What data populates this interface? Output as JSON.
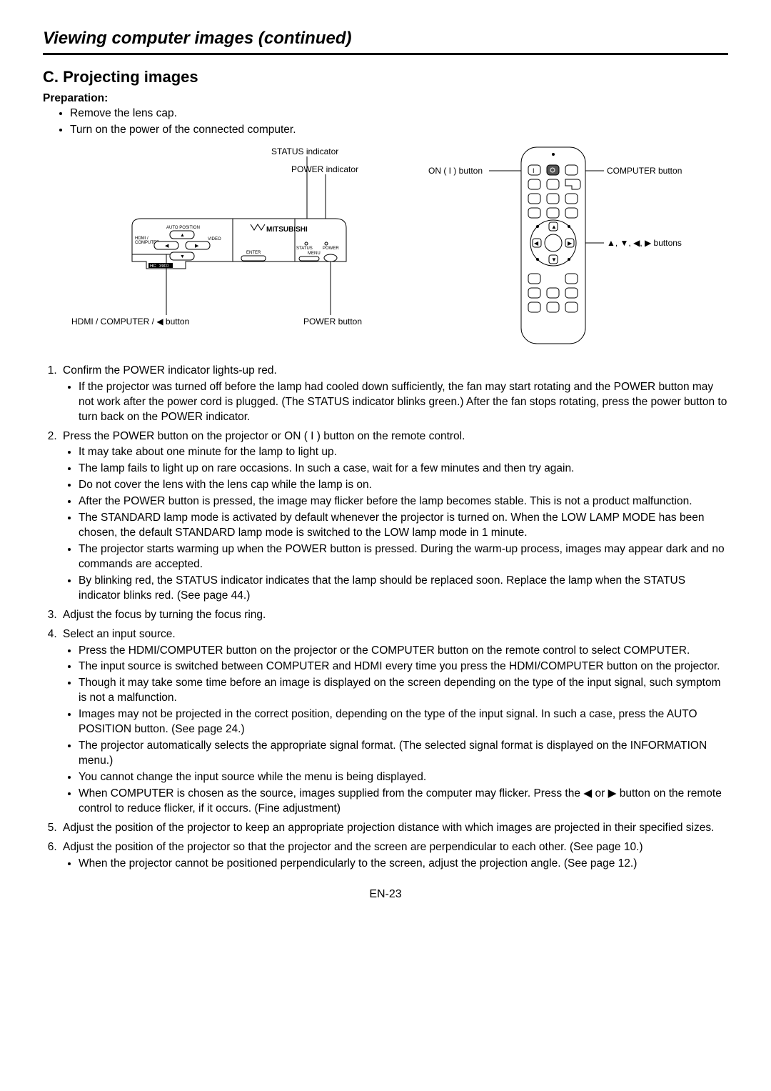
{
  "breadcrumb": "Viewing computer images (continued)",
  "section": "C. Projecting images",
  "preparation_label": "Preparation:",
  "preparation": [
    "Remove the lens cap.",
    "Turn on the power of the connected computer."
  ],
  "labels": {
    "status_indicator": "STATUS indicator",
    "power_indicator": "POWER indicator",
    "hdmi_computer_button": "HDMI / COMPUTER / ◀ button",
    "power_button": "POWER button",
    "on_button": "ON ( I ) button",
    "computer_button": "COMPUTER button",
    "arrow_buttons": "▲, ▼, ◀, ▶ buttons",
    "auto_position": "AUTO POSITION",
    "hdmi_computer": "HDMI /\nCOMPUTER",
    "video": "VIDEO",
    "enter": "ENTER",
    "menu": "MENU",
    "status": "STATUS",
    "power": "POWER",
    "model": "HC3900",
    "brand": "MITSUBISHI"
  },
  "steps": [
    {
      "text": "Confirm the POWER indicator lights-up red.",
      "sub": [
        "If the projector was turned off before the lamp had cooled down sufficiently, the fan may start rotating and the POWER button may not work after the power cord is plugged. (The STATUS indicator blinks green.) After the fan stops rotating, press the power button to turn back on the POWER indicator."
      ]
    },
    {
      "text": "Press the POWER button on the projector or ON ( I ) button on the remote control.",
      "sub": [
        "It may take about one minute for the lamp to light up.",
        "The lamp fails to light up on rare occasions. In such a case, wait for a few minutes and then try again.",
        "Do not cover the lens with the lens cap while the lamp is on.",
        "After the POWER button is pressed, the image may flicker before the lamp becomes stable. This is not a product malfunction.",
        "The STANDARD lamp mode is activated by default whenever the projector is turned on. When the LOW LAMP MODE has been chosen, the default STANDARD lamp mode is switched to the LOW lamp mode in 1 minute.",
        "The projector starts warming up when the POWER button is pressed. During the warm-up process, images may appear dark and no commands are accepted.",
        "By blinking red, the STATUS indicator indicates that the lamp should be replaced soon. Replace the lamp when the STATUS indicator blinks red. (See page 44.)"
      ]
    },
    {
      "text": "Adjust the focus by turning the focus ring."
    },
    {
      "text": "Select an input source.",
      "sub": [
        "Press the HDMI/COMPUTER button on the projector or the COMPUTER button on the remote control to select COMPUTER.",
        "The input source is switched between COMPUTER and HDMI every time you press the HDMI/COMPUTER button on the projector.",
        "Though it may take some time before an image is displayed on the screen depending on the type of the input signal, such symptom is not a malfunction.",
        "Images may not be projected in the correct position, depending on the type of the input signal. In such a case, press the AUTO POSITION button. (See page 24.)",
        "The projector automatically selects the appropriate signal format. (The selected signal format is displayed on the INFORMATION menu.)",
        "You cannot change the input source while the menu is being displayed.",
        "When COMPUTER is chosen as the source, images supplied from the computer may flicker. Press the ◀ or ▶ button on the remote control to reduce flicker, if it occurs. (Fine adjustment)"
      ]
    },
    {
      "text": "Adjust the position of the projector to keep an appropriate projection distance with which images are projected in their specified sizes."
    },
    {
      "text": "Adjust the position of the projector so that the projector and the screen are perpendicular to each other. (See page 10.)",
      "sub": [
        "When the projector cannot be positioned perpendicularly to the screen, adjust the projection angle. (See page 12.)"
      ]
    }
  ],
  "page_number": "EN-23"
}
